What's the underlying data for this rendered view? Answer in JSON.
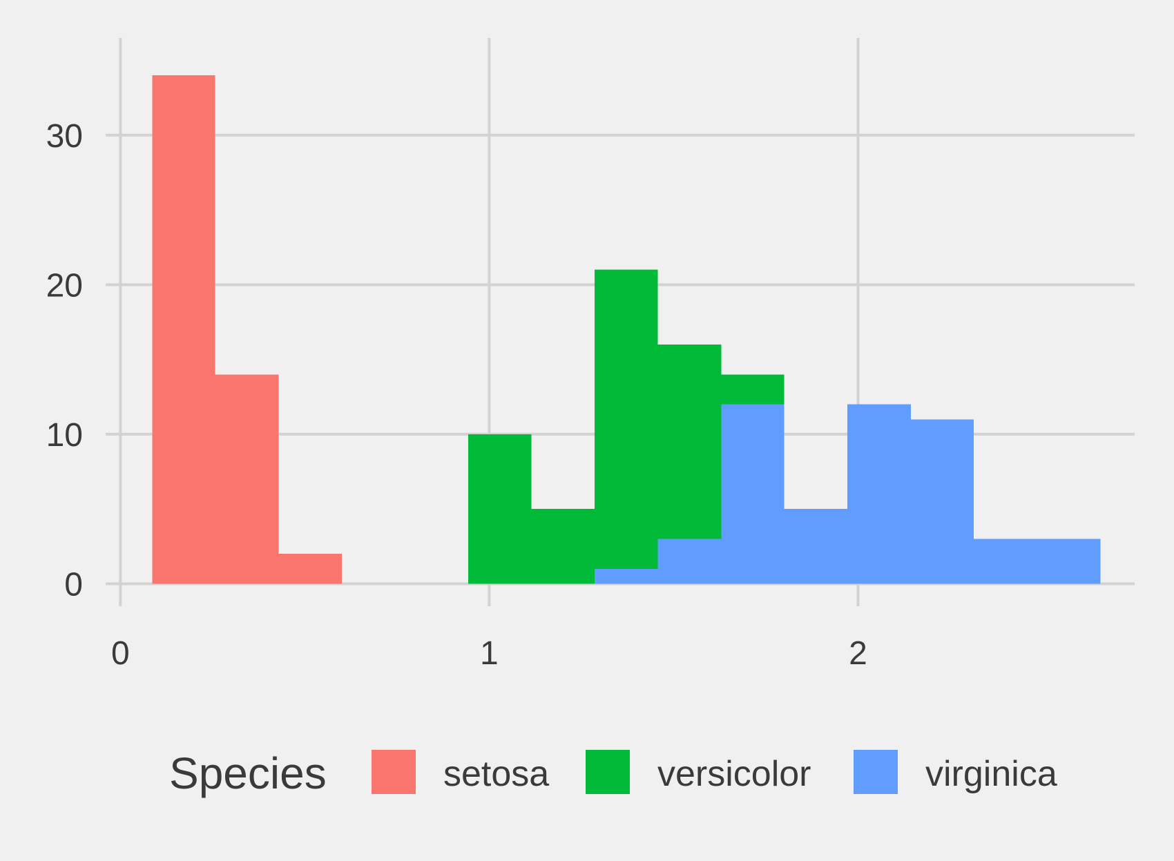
{
  "chart_data": {
    "type": "histogram",
    "bin_width": 0.1714,
    "xlim": [
      -0.04,
      2.75
    ],
    "ylim": [
      -1.5,
      36.5
    ],
    "x_ticks": [
      0,
      1,
      2
    ],
    "x_tick_labels": [
      "0",
      "1",
      "2"
    ],
    "y_ticks": [
      0,
      10,
      20,
      30
    ],
    "y_tick_labels": [
      "0",
      "10",
      "20",
      "30"
    ],
    "grid": true,
    "legend": {
      "title": "Species",
      "placement": "bottom",
      "entries": [
        "setosa",
        "versicolor",
        "virginica"
      ]
    },
    "series": [
      {
        "name": "setosa",
        "color": "#F8766D",
        "bins": [
          {
            "x0": 0.086,
            "x1": 0.257,
            "count": 34
          },
          {
            "x0": 0.257,
            "x1": 0.429,
            "count": 14
          },
          {
            "x0": 0.429,
            "x1": 0.6,
            "count": 2
          }
        ]
      },
      {
        "name": "versicolor",
        "color": "#00BA38",
        "bins": [
          {
            "x0": 0.943,
            "x1": 1.114,
            "count": 10
          },
          {
            "x0": 1.114,
            "x1": 1.286,
            "count": 5
          },
          {
            "x0": 1.286,
            "x1": 1.457,
            "count": 21
          },
          {
            "x0": 1.457,
            "x1": 1.629,
            "count": 16
          },
          {
            "x0": 1.629,
            "x1": 1.8,
            "count": 14
          }
        ]
      },
      {
        "name": "virginica",
        "color": "#619CFF",
        "bins": [
          {
            "x0": 1.286,
            "x1": 1.457,
            "count": 1
          },
          {
            "x0": 1.457,
            "x1": 1.629,
            "count": 3
          },
          {
            "x0": 1.629,
            "x1": 1.8,
            "count": 12
          },
          {
            "x0": 1.8,
            "x1": 1.971,
            "count": 5
          },
          {
            "x0": 1.971,
            "x1": 2.143,
            "count": 12
          },
          {
            "x0": 2.143,
            "x1": 2.314,
            "count": 11
          },
          {
            "x0": 2.314,
            "x1": 2.657,
            "count": 3
          }
        ]
      }
    ]
  }
}
